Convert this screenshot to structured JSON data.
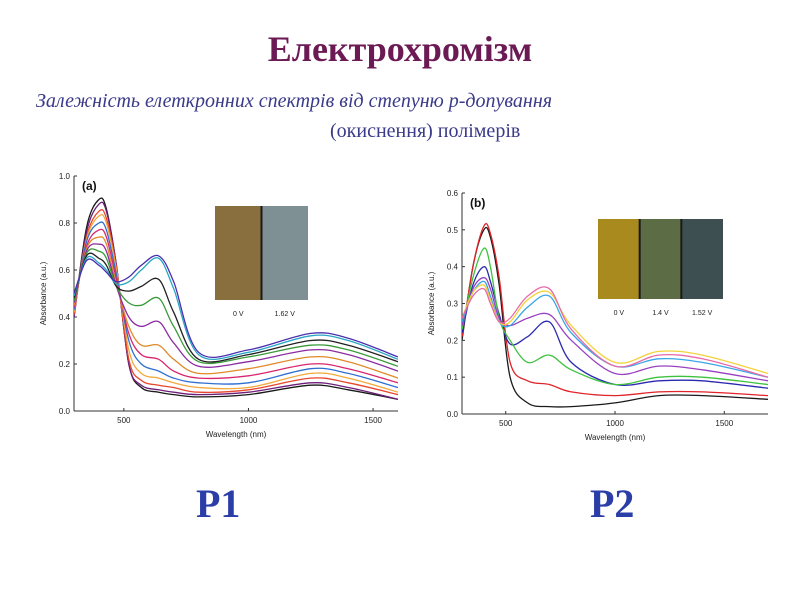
{
  "header": {
    "title": "Електрохромізм",
    "subtitle_line1": "Залежність елеткронних спектрів від степуню p-допування",
    "subtitle_line2": "(окиснення) полімерів"
  },
  "labels": {
    "p1": "P1",
    "p2": "P2"
  },
  "chart_data": [
    {
      "type": "line",
      "panel_label": "(a)",
      "xlabel": "Wavelength (nm)",
      "ylabel": "Absorbance (a.u.)",
      "xlim": [
        300,
        1600
      ],
      "ylim": [
        0,
        1.0
      ],
      "xticks": [
        500,
        1000,
        1500
      ],
      "yticks": [
        0.0,
        0.2,
        0.4,
        0.6,
        0.8,
        1.0
      ],
      "ytick_labels": [
        "0.0",
        "0.2",
        "0.4",
        "0.6",
        "0.8",
        "1.0"
      ],
      "grid": false,
      "inset": {
        "swatches": [
          {
            "label": "0 V",
            "color": "#8a6f3e"
          },
          {
            "label": "1.62 V",
            "color": "#7f9094"
          }
        ]
      },
      "series": [
        {
          "color": "#1a1a1a",
          "x": [
            300,
            350,
            400,
            430,
            470,
            520,
            570,
            640,
            700,
            800,
            1000,
            1250,
            1400,
            1600
          ],
          "y": [
            0.4,
            0.78,
            0.9,
            0.86,
            0.62,
            0.2,
            0.1,
            0.08,
            0.07,
            0.06,
            0.07,
            0.11,
            0.09,
            0.05
          ]
        },
        {
          "color": "#6e1f7a",
          "x": [
            300,
            350,
            400,
            430,
            470,
            520,
            570,
            640,
            700,
            800,
            1000,
            1250,
            1400,
            1600
          ],
          "y": [
            0.4,
            0.76,
            0.88,
            0.85,
            0.62,
            0.2,
            0.11,
            0.09,
            0.08,
            0.07,
            0.08,
            0.12,
            0.1,
            0.05
          ]
        },
        {
          "color": "#e8452d",
          "x": [
            300,
            350,
            400,
            430,
            470,
            520,
            570,
            640,
            700,
            800,
            1000,
            1250,
            1400,
            1600
          ],
          "y": [
            0.41,
            0.74,
            0.85,
            0.82,
            0.61,
            0.22,
            0.13,
            0.11,
            0.1,
            0.08,
            0.09,
            0.14,
            0.12,
            0.07
          ]
        },
        {
          "color": "#f2a93b",
          "x": [
            300,
            350,
            400,
            430,
            470,
            520,
            570,
            640,
            700,
            800,
            1000,
            1250,
            1400,
            1600
          ],
          "y": [
            0.42,
            0.73,
            0.83,
            0.8,
            0.6,
            0.26,
            0.16,
            0.14,
            0.12,
            0.1,
            0.1,
            0.16,
            0.14,
            0.08
          ]
        },
        {
          "color": "#2f6fd0",
          "x": [
            300,
            350,
            400,
            430,
            470,
            520,
            570,
            640,
            700,
            800,
            1000,
            1250,
            1400,
            1600
          ],
          "y": [
            0.43,
            0.72,
            0.8,
            0.77,
            0.58,
            0.3,
            0.2,
            0.17,
            0.14,
            0.12,
            0.12,
            0.18,
            0.16,
            0.1
          ]
        },
        {
          "color": "#d8266f",
          "x": [
            300,
            350,
            400,
            430,
            470,
            520,
            570,
            640,
            700,
            800,
            1000,
            1250,
            1400,
            1600
          ],
          "y": [
            0.44,
            0.7,
            0.77,
            0.74,
            0.56,
            0.33,
            0.24,
            0.22,
            0.17,
            0.14,
            0.15,
            0.2,
            0.18,
            0.12
          ]
        },
        {
          "color": "#e08a2a",
          "x": [
            300,
            350,
            400,
            430,
            470,
            520,
            570,
            640,
            700,
            800,
            1000,
            1250,
            1400,
            1600
          ],
          "y": [
            0.45,
            0.69,
            0.74,
            0.71,
            0.54,
            0.36,
            0.28,
            0.28,
            0.22,
            0.16,
            0.18,
            0.23,
            0.21,
            0.14
          ]
        },
        {
          "color": "#8a2ca0",
          "x": [
            300,
            350,
            400,
            430,
            470,
            520,
            570,
            640,
            700,
            800,
            1000,
            1250,
            1400,
            1600
          ],
          "y": [
            0.46,
            0.68,
            0.71,
            0.68,
            0.53,
            0.4,
            0.36,
            0.38,
            0.29,
            0.19,
            0.21,
            0.26,
            0.24,
            0.17
          ]
        },
        {
          "color": "#3a9a3a",
          "x": [
            300,
            350,
            400,
            430,
            470,
            520,
            570,
            640,
            700,
            800,
            1000,
            1250,
            1400,
            1600
          ],
          "y": [
            0.47,
            0.67,
            0.68,
            0.65,
            0.53,
            0.46,
            0.45,
            0.48,
            0.36,
            0.21,
            0.23,
            0.28,
            0.26,
            0.19
          ]
        },
        {
          "color": "#202020",
          "x": [
            300,
            350,
            400,
            430,
            470,
            520,
            570,
            640,
            700,
            800,
            1000,
            1250,
            1400,
            1600
          ],
          "y": [
            0.48,
            0.66,
            0.65,
            0.62,
            0.53,
            0.51,
            0.53,
            0.56,
            0.42,
            0.22,
            0.24,
            0.3,
            0.28,
            0.21
          ]
        },
        {
          "color": "#2aa6c4",
          "x": [
            300,
            350,
            400,
            430,
            470,
            520,
            570,
            640,
            700,
            800,
            1000,
            1250,
            1400,
            1600
          ],
          "y": [
            0.49,
            0.65,
            0.63,
            0.6,
            0.54,
            0.55,
            0.6,
            0.65,
            0.52,
            0.24,
            0.25,
            0.32,
            0.3,
            0.22
          ]
        },
        {
          "color": "#4a2fb0",
          "x": [
            300,
            350,
            400,
            430,
            470,
            520,
            570,
            640,
            700,
            800,
            1000,
            1250,
            1400,
            1600
          ],
          "y": [
            0.5,
            0.64,
            0.62,
            0.59,
            0.55,
            0.57,
            0.62,
            0.66,
            0.55,
            0.25,
            0.26,
            0.33,
            0.31,
            0.23
          ]
        }
      ]
    },
    {
      "type": "line",
      "panel_label": "(b)",
      "xlabel": "Wavelength (nm)",
      "ylabel": "Absorbance (a.u.)",
      "xlim": [
        300,
        1700
      ],
      "ylim": [
        0,
        0.6
      ],
      "xticks": [
        500,
        1000,
        1500
      ],
      "yticks": [
        0.0,
        0.1,
        0.2,
        0.3,
        0.4,
        0.5,
        0.6
      ],
      "ytick_labels": [
        "0.0",
        "0.1",
        "0.2",
        "0.3",
        "0.4",
        "0.5",
        "0.6"
      ],
      "grid": false,
      "inset": {
        "swatches": [
          {
            "label": "0 V",
            "color": "#a88a1f"
          },
          {
            "label": "1.4 V",
            "color": "#5c6d45"
          },
          {
            "label": "1.52 V",
            "color": "#3e4f52"
          }
        ]
      },
      "series": [
        {
          "color": "#1a1a1a",
          "x": [
            300,
            350,
            400,
            430,
            470,
            520,
            600,
            700,
            800,
            1000,
            1200,
            1400,
            1700
          ],
          "y": [
            0.2,
            0.4,
            0.5,
            0.48,
            0.35,
            0.1,
            0.03,
            0.02,
            0.02,
            0.03,
            0.05,
            0.05,
            0.04
          ]
        },
        {
          "color": "#e0242a",
          "x": [
            300,
            350,
            400,
            430,
            470,
            520,
            600,
            700,
            800,
            1000,
            1200,
            1400,
            1700
          ],
          "y": [
            0.21,
            0.4,
            0.51,
            0.49,
            0.37,
            0.14,
            0.09,
            0.08,
            0.06,
            0.05,
            0.06,
            0.06,
            0.05
          ]
        },
        {
          "color": "#2a2ab0",
          "x": [
            300,
            350,
            400,
            430,
            470,
            520,
            600,
            700,
            800,
            1000,
            1200,
            1400,
            1700
          ],
          "y": [
            0.22,
            0.35,
            0.4,
            0.36,
            0.27,
            0.19,
            0.21,
            0.25,
            0.14,
            0.08,
            0.09,
            0.09,
            0.07
          ]
        },
        {
          "color": "#3fc23f",
          "x": [
            300,
            350,
            400,
            430,
            470,
            520,
            600,
            700,
            800,
            1000,
            1200,
            1400,
            1700
          ],
          "y": [
            0.23,
            0.37,
            0.45,
            0.4,
            0.26,
            0.2,
            0.14,
            0.16,
            0.12,
            0.08,
            0.1,
            0.1,
            0.08
          ]
        },
        {
          "color": "#9a3fbf",
          "x": [
            300,
            350,
            400,
            430,
            470,
            520,
            600,
            700,
            800,
            1000,
            1200,
            1400,
            1700
          ],
          "y": [
            0.24,
            0.34,
            0.37,
            0.34,
            0.26,
            0.24,
            0.26,
            0.27,
            0.2,
            0.11,
            0.13,
            0.12,
            0.09
          ]
        },
        {
          "color": "#3aa6e8",
          "x": [
            300,
            350,
            400,
            430,
            470,
            520,
            600,
            700,
            800,
            1000,
            1200,
            1400,
            1700
          ],
          "y": [
            0.25,
            0.33,
            0.36,
            0.32,
            0.25,
            0.24,
            0.29,
            0.32,
            0.22,
            0.13,
            0.15,
            0.14,
            0.1
          ]
        },
        {
          "color": "#f2d23a",
          "x": [
            300,
            350,
            400,
            430,
            470,
            520,
            600,
            700,
            800,
            1000,
            1200,
            1400,
            1700
          ],
          "y": [
            0.26,
            0.33,
            0.35,
            0.31,
            0.25,
            0.25,
            0.31,
            0.33,
            0.24,
            0.14,
            0.17,
            0.16,
            0.11
          ]
        },
        {
          "color": "#e86aa8",
          "x": [
            300,
            350,
            400,
            430,
            470,
            520,
            600,
            700,
            800,
            1000,
            1200,
            1400,
            1700
          ],
          "y": [
            0.26,
            0.32,
            0.34,
            0.3,
            0.25,
            0.26,
            0.32,
            0.34,
            0.23,
            0.13,
            0.16,
            0.15,
            0.1
          ]
        }
      ]
    }
  ]
}
